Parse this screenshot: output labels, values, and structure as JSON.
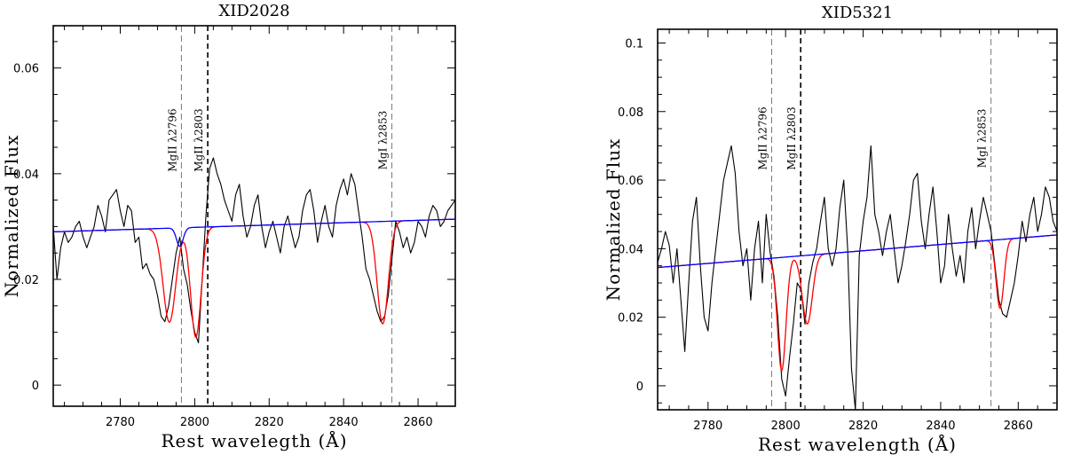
{
  "chart_data": [
    {
      "type": "line",
      "title": "XID2028",
      "xlabel": "Rest wavelegth (Å)",
      "ylabel": "Normalized Flux",
      "xlim": [
        2762,
        2870
      ],
      "ylim": [
        -0.004,
        0.068
      ],
      "xticks": [
        2780,
        2800,
        2820,
        2840,
        2860
      ],
      "yticks": [
        0,
        0.02,
        0.04,
        0.06
      ],
      "xtick_labels": [
        "2780",
        "2800",
        "2820",
        "2840",
        "2860"
      ],
      "ytick_labels": [
        "0",
        "0.02",
        "0.04",
        "0.06"
      ],
      "grid": false,
      "lines": [
        {
          "label": "MgII λ2796",
          "x": 2796.4,
          "style": "thin-dashed"
        },
        {
          "label": "MgII λ2803",
          "x": 2803.5,
          "style": "thick-dashed"
        },
        {
          "label": "MgI λ2853",
          "x": 2853.0,
          "style": "thin-dashed"
        }
      ],
      "series": [
        {
          "color": "#000000",
          "x": [
            2762,
            2763,
            2764,
            2765,
            2766,
            2767,
            2768,
            2769,
            2770,
            2771,
            2772,
            2773,
            2774,
            2775,
            2776,
            2777,
            2778,
            2779,
            2780,
            2781,
            2782,
            2783,
            2784,
            2785,
            2786,
            2787,
            2788,
            2789,
            2790,
            2791,
            2792,
            2793,
            2794,
            2795,
            2796,
            2797,
            2798,
            2799,
            2800,
            2801,
            2802,
            2803,
            2804,
            2805,
            2806,
            2807,
            2808,
            2809,
            2810,
            2811,
            2812,
            2813,
            2814,
            2815,
            2816,
            2817,
            2818,
            2819,
            2820,
            2821,
            2822,
            2823,
            2824,
            2825,
            2826,
            2827,
            2828,
            2829,
            2830,
            2831,
            2832,
            2833,
            2834,
            2835,
            2836,
            2837,
            2838,
            2839,
            2840,
            2841,
            2842,
            2843,
            2844,
            2845,
            2846,
            2847,
            2848,
            2849,
            2850,
            2851,
            2852,
            2853,
            2854,
            2855,
            2856,
            2857,
            2858,
            2859,
            2860,
            2861,
            2862,
            2863,
            2864,
            2865,
            2866,
            2867,
            2868,
            2869,
            2870
          ],
          "y": [
            0.03,
            0.02,
            0.026,
            0.029,
            0.027,
            0.028,
            0.03,
            0.031,
            0.028,
            0.026,
            0.028,
            0.03,
            0.034,
            0.032,
            0.029,
            0.035,
            0.036,
            0.037,
            0.033,
            0.03,
            0.034,
            0.033,
            0.027,
            0.028,
            0.022,
            0.023,
            0.021,
            0.02,
            0.017,
            0.013,
            0.012,
            0.015,
            0.02,
            0.025,
            0.028,
            0.022,
            0.019,
            0.014,
            0.01,
            0.008,
            0.02,
            0.032,
            0.041,
            0.043,
            0.04,
            0.038,
            0.035,
            0.033,
            0.031,
            0.036,
            0.038,
            0.032,
            0.028,
            0.03,
            0.034,
            0.036,
            0.03,
            0.026,
            0.029,
            0.031,
            0.028,
            0.025,
            0.03,
            0.032,
            0.029,
            0.026,
            0.028,
            0.033,
            0.036,
            0.037,
            0.033,
            0.027,
            0.031,
            0.034,
            0.03,
            0.028,
            0.034,
            0.037,
            0.039,
            0.036,
            0.04,
            0.038,
            0.033,
            0.028,
            0.022,
            0.02,
            0.017,
            0.014,
            0.012,
            0.013,
            0.017,
            0.024,
            0.031,
            0.029,
            0.026,
            0.028,
            0.025,
            0.027,
            0.031,
            0.03,
            0.028,
            0.032,
            0.034,
            0.033,
            0.03,
            0.031,
            0.033,
            0.034,
            0.035
          ]
        },
        {
          "color": "#ff0000",
          "continuum": [
            [
              2762,
              0.029
            ],
            [
              2870,
              0.0314
            ]
          ],
          "absorptions": [
            {
              "center": 2793.2,
              "depth": 0.0178,
              "sigma": 1.7
            },
            {
              "center": 2800.3,
              "depth": 0.0208,
              "sigma": 1.4
            },
            {
              "center": 2850.5,
              "depth": 0.0194,
              "sigma": 1.5
            }
          ]
        },
        {
          "color": "#0000ff",
          "continuum": [
            [
              2762,
              0.029
            ],
            [
              2870,
              0.0314
            ]
          ],
          "absorptions": [
            {
              "center": 2796.0,
              "depth": 0.0035,
              "sigma": 0.9
            }
          ]
        }
      ]
    },
    {
      "type": "line",
      "title": "XID5321",
      "xlabel": "Rest wavelength (Å)",
      "ylabel": "Normalized Flux",
      "xlim": [
        2767,
        2870
      ],
      "ylim": [
        -0.007,
        0.104
      ],
      "xticks": [
        2780,
        2800,
        2820,
        2840,
        2860
      ],
      "yticks": [
        0,
        0.02,
        0.04,
        0.06,
        0.08,
        0.1
      ],
      "xtick_labels": [
        "2780",
        "2800",
        "2820",
        "2840",
        "2860"
      ],
      "ytick_labels": [
        "0",
        "0.02",
        "0.04",
        "0.06",
        "0.08",
        "0.1"
      ],
      "grid": false,
      "lines": [
        {
          "label": "MgII λ2796",
          "x": 2796.4,
          "style": "thin-dashed"
        },
        {
          "label": "MgII λ2803",
          "x": 2803.9,
          "style": "thick-dashed"
        },
        {
          "label": "MgI λ2853",
          "x": 2853.0,
          "style": "thin-dashed"
        }
      ],
      "series": [
        {
          "color": "#000000",
          "x": [
            2767,
            2768,
            2769,
            2770,
            2771,
            2772,
            2773,
            2774,
            2775,
            2776,
            2777,
            2778,
            2779,
            2780,
            2781,
            2782,
            2783,
            2784,
            2785,
            2786,
            2787,
            2788,
            2789,
            2790,
            2791,
            2792,
            2793,
            2794,
            2795,
            2796,
            2797,
            2798,
            2799,
            2800,
            2801,
            2802,
            2803,
            2804,
            2805,
            2806,
            2807,
            2808,
            2809,
            2810,
            2811,
            2812,
            2813,
            2814,
            2815,
            2816,
            2817,
            2818,
            2819,
            2820,
            2821,
            2822,
            2823,
            2824,
            2825,
            2826,
            2827,
            2828,
            2829,
            2830,
            2831,
            2832,
            2833,
            2834,
            2835,
            2836,
            2837,
            2838,
            2839,
            2840,
            2841,
            2842,
            2843,
            2844,
            2845,
            2846,
            2847,
            2848,
            2849,
            2850,
            2851,
            2852,
            2853,
            2854,
            2855,
            2856,
            2857,
            2858,
            2859,
            2860,
            2861,
            2862,
            2863,
            2864,
            2865,
            2866,
            2867,
            2868,
            2869,
            2870
          ],
          "y": [
            0.036,
            0.04,
            0.045,
            0.041,
            0.03,
            0.04,
            0.025,
            0.01,
            0.03,
            0.048,
            0.055,
            0.035,
            0.02,
            0.016,
            0.03,
            0.04,
            0.05,
            0.06,
            0.065,
            0.07,
            0.062,
            0.045,
            0.035,
            0.04,
            0.025,
            0.04,
            0.048,
            0.03,
            0.05,
            0.039,
            0.032,
            0.02,
            0.002,
            -0.003,
            0.008,
            0.018,
            0.03,
            0.028,
            0.018,
            0.03,
            0.036,
            0.04,
            0.048,
            0.055,
            0.04,
            0.035,
            0.04,
            0.052,
            0.06,
            0.04,
            0.005,
            -0.007,
            0.038,
            0.048,
            0.055,
            0.07,
            0.05,
            0.045,
            0.038,
            0.045,
            0.05,
            0.04,
            0.03,
            0.035,
            0.042,
            0.05,
            0.06,
            0.062,
            0.048,
            0.04,
            0.05,
            0.058,
            0.045,
            0.03,
            0.035,
            0.05,
            0.04,
            0.032,
            0.038,
            0.03,
            0.045,
            0.052,
            0.04,
            0.048,
            0.055,
            0.05,
            0.045,
            0.035,
            0.025,
            0.021,
            0.02,
            0.025,
            0.03,
            0.038,
            0.048,
            0.042,
            0.05,
            0.055,
            0.045,
            0.05,
            0.058,
            0.055,
            0.048,
            0.045
          ]
        },
        {
          "color": "#ff0000",
          "continuum": [
            [
              2767,
              0.0345
            ],
            [
              2870,
              0.044
            ]
          ],
          "absorptions": [
            {
              "center": 2799.0,
              "depth": 0.033,
              "sigma": 1.1
            },
            {
              "center": 2805.6,
              "depth": 0.02,
              "sigma": 1.3
            },
            {
              "center": 2855.3,
              "depth": 0.02,
              "sigma": 1.0
            }
          ]
        },
        {
          "color": "#0000ff",
          "continuum": [
            [
              2767,
              0.0345
            ],
            [
              2870,
              0.044
            ]
          ],
          "absorptions": []
        }
      ]
    }
  ]
}
